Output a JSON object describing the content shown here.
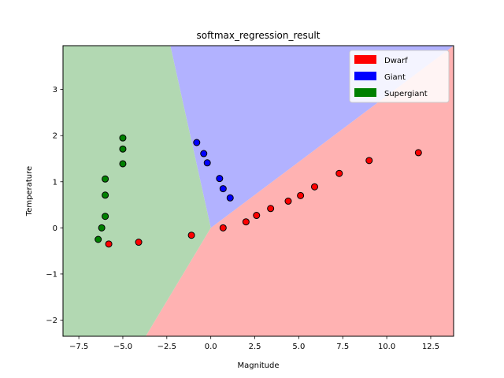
{
  "chart_data": {
    "type": "scatter",
    "title": "softmax_regression_result",
    "xlabel": "Magnitude",
    "ylabel": "Temperature",
    "xlim": [
      -8.4,
      13.8
    ],
    "ylim": [
      -2.35,
      3.95
    ],
    "x_ticks": [
      -7.5,
      -5.0,
      -2.5,
      0.0,
      2.5,
      5.0,
      7.5,
      10.0,
      12.5
    ],
    "x_tick_labels": [
      "−7.5",
      "−5.0",
      "−2.5",
      "0.0",
      "2.5",
      "5.0",
      "7.5",
      "10.0",
      "12.5"
    ],
    "y_ticks": [
      -2,
      -1,
      0,
      1,
      2,
      3
    ],
    "y_tick_labels": [
      "−2",
      "−1",
      "0",
      "1",
      "2",
      "3"
    ],
    "grid": false,
    "legend_position": "top-right",
    "regions": [
      {
        "name": "Dwarf",
        "fill": "#ffb2b2"
      },
      {
        "name": "Giant",
        "fill": "#b2b2ff"
      },
      {
        "name": "Supergiant",
        "fill": "#b2d8b2"
      }
    ],
    "boundaries": {
      "center": [
        0.0,
        0.0
      ],
      "dwarf_giant_end": [
        13.8,
        3.95
      ],
      "giant_supergiant_end": [
        -2.3,
        3.95
      ],
      "dwarf_supergiant_end": [
        -3.7,
        -2.35
      ]
    },
    "series": [
      {
        "name": "Dwarf",
        "color": "#ff0000",
        "points": [
          [
            -5.8,
            -0.35
          ],
          [
            -4.1,
            -0.31
          ],
          [
            -1.1,
            -0.16
          ],
          [
            0.7,
            0.0
          ],
          [
            2.0,
            0.13
          ],
          [
            2.6,
            0.27
          ],
          [
            3.4,
            0.42
          ],
          [
            4.4,
            0.58
          ],
          [
            5.1,
            0.7
          ],
          [
            5.9,
            0.89
          ],
          [
            7.3,
            1.18
          ],
          [
            9.0,
            1.46
          ],
          [
            11.8,
            1.63
          ]
        ]
      },
      {
        "name": "Giant",
        "color": "#0000ff",
        "points": [
          [
            -0.8,
            1.85
          ],
          [
            -0.4,
            1.61
          ],
          [
            -0.2,
            1.41
          ],
          [
            0.5,
            1.07
          ],
          [
            0.7,
            0.85
          ],
          [
            1.1,
            0.65
          ]
        ]
      },
      {
        "name": "Supergiant",
        "color": "#008000",
        "points": [
          [
            -5.0,
            1.95
          ],
          [
            -5.0,
            1.71
          ],
          [
            -5.0,
            1.39
          ],
          [
            -6.0,
            1.06
          ],
          [
            -6.0,
            0.71
          ],
          [
            -6.0,
            0.25
          ],
          [
            -6.2,
            0.0
          ],
          [
            -6.4,
            -0.25
          ]
        ]
      }
    ],
    "legend": [
      {
        "label": "Dwarf",
        "color": "#ff0000"
      },
      {
        "label": "Giant",
        "color": "#0000ff"
      },
      {
        "label": "Supergiant",
        "color": "#008000"
      }
    ]
  }
}
